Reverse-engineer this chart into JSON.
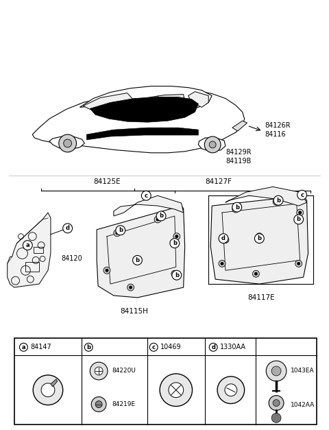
{
  "background_color": "#ffffff",
  "fig_width": 4.8,
  "fig_height": 6.27,
  "part_labels": {
    "84126R_84116": "84126R\n84116",
    "84129R_84119B": "84129R\n84119B",
    "84127F": "84127F",
    "84125E": "84125E",
    "84120": "84120",
    "84115H": "84115H",
    "84117E": "84117E"
  },
  "legend": {
    "a": "84147",
    "b_top": "84220U",
    "b_bot": "84219E",
    "c": "10469",
    "d": "1330AA",
    "e_top": "1043EA",
    "e_bot": "1042AA"
  }
}
